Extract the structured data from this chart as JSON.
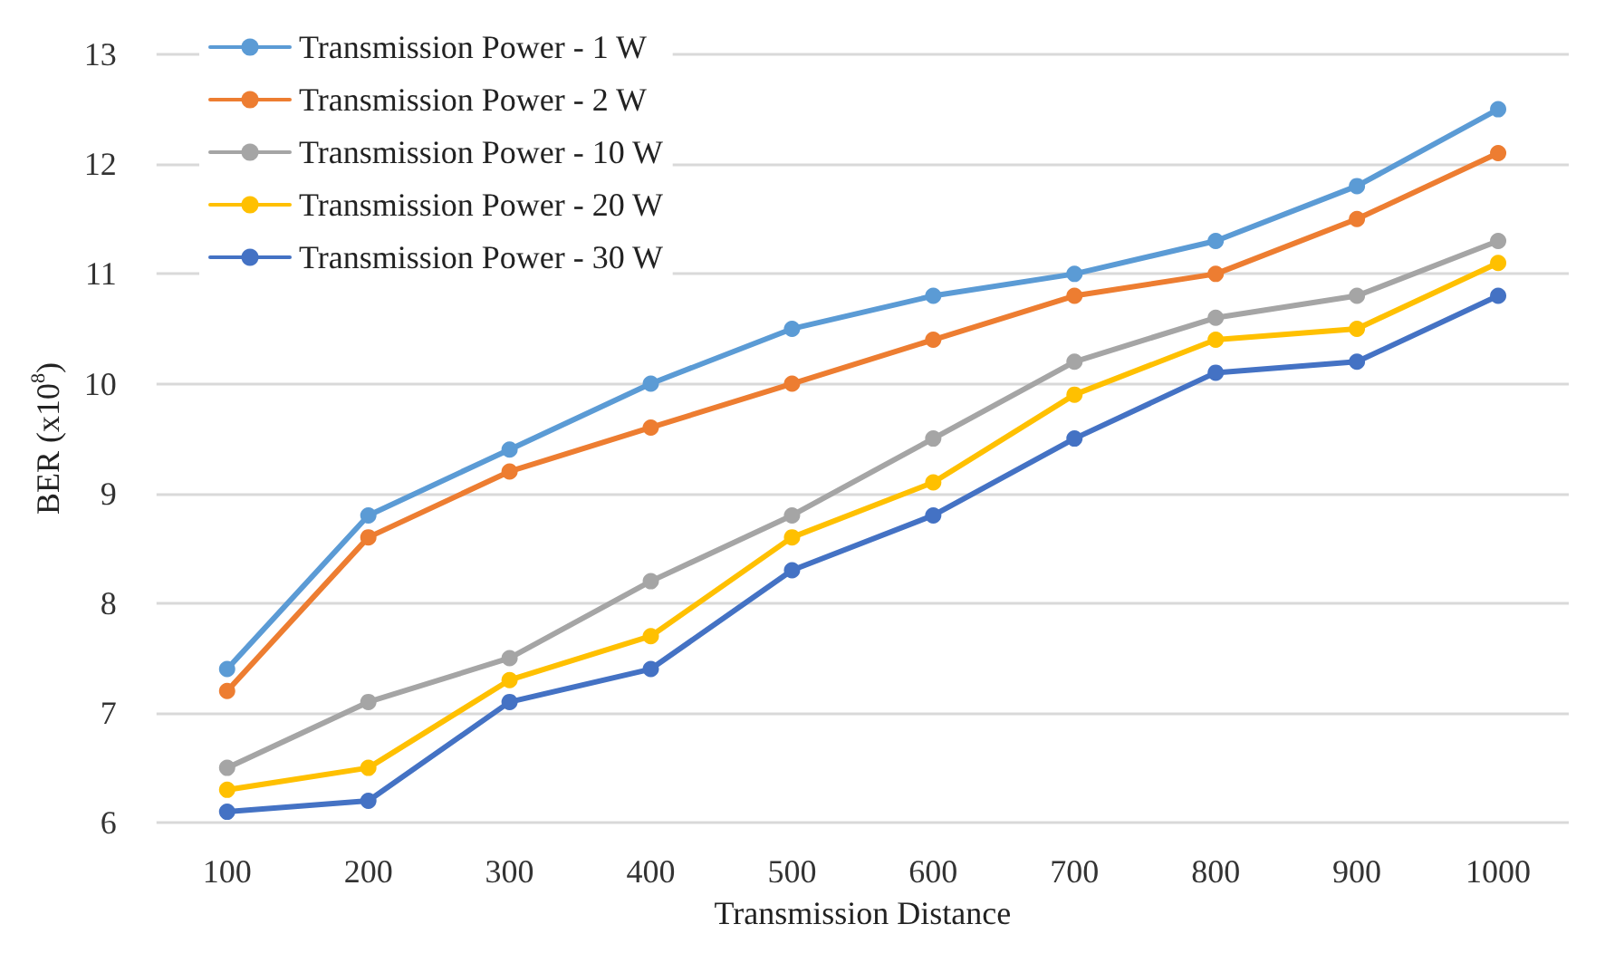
{
  "chart_data": {
    "type": "line",
    "xlabel": "Transmission Distance",
    "ylabel": "BER (x10$^{8}$)",
    "categories": [
      "100",
      "200",
      "300",
      "400",
      "500",
      "600",
      "700",
      "800",
      "900",
      "1000"
    ],
    "ylim": [
      6,
      13
    ],
    "yticks": [
      6,
      7,
      8,
      9,
      10,
      11,
      12,
      13
    ],
    "grid": "y",
    "legend": "top left",
    "marker": "circle",
    "line_style": "solid",
    "series": [
      {
        "name": "Transmission Power - 1 W",
        "color": "#5b9bd5",
        "values": [
          7.4,
          8.8,
          9.4,
          10.0,
          10.5,
          10.8,
          11.0,
          11.3,
          11.8,
          12.5
        ]
      },
      {
        "name": "Transmission Power - 2 W",
        "color": "#ed7d31",
        "values": [
          7.2,
          8.6,
          9.2,
          9.6,
          10.0,
          10.4,
          10.8,
          11.0,
          11.5,
          12.1
        ]
      },
      {
        "name": "Transmission Power - 10 W",
        "color": "#a5a5a5",
        "values": [
          6.5,
          7.1,
          7.5,
          8.2,
          8.8,
          9.5,
          10.2,
          10.6,
          10.8,
          11.3
        ]
      },
      {
        "name": "Transmission Power - 20 W",
        "color": "#ffc000",
        "values": [
          6.3,
          6.5,
          7.3,
          7.7,
          8.6,
          9.1,
          9.9,
          10.4,
          10.5,
          11.1
        ]
      },
      {
        "name": "Transmission Power - 30 W",
        "color": "#4472c4",
        "values": [
          6.1,
          6.2,
          7.1,
          7.4,
          8.3,
          8.8,
          9.5,
          10.1,
          10.2,
          10.8
        ]
      }
    ]
  }
}
